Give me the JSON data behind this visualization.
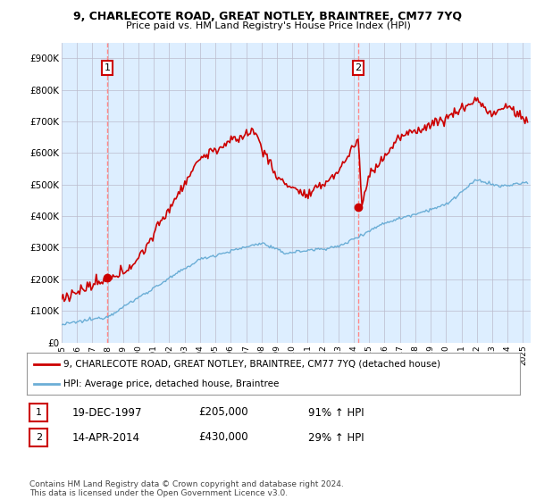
{
  "title1": "9, CHARLECOTE ROAD, GREAT NOTLEY, BRAINTREE, CM77 7YQ",
  "title2": "Price paid vs. HM Land Registry's House Price Index (HPI)",
  "ylabel_ticks": [
    "£0",
    "£100K",
    "£200K",
    "£300K",
    "£400K",
    "£500K",
    "£600K",
    "£700K",
    "£800K",
    "£900K"
  ],
  "ylim": [
    0,
    950000
  ],
  "xlim_start": 1995.0,
  "xlim_end": 2025.5,
  "sale1_x": 1997.97,
  "sale1_y": 205000,
  "sale1_label": "1",
  "sale2_x": 2014.28,
  "sale2_y": 430000,
  "sale2_label": "2",
  "legend_line1": "9, CHARLECOTE ROAD, GREAT NOTLEY, BRAINTREE, CM77 7YQ (detached house)",
  "legend_line2": "HPI: Average price, detached house, Braintree",
  "table_row1": [
    "1",
    "19-DEC-1997",
    "£205,000",
    "91% ↑ HPI"
  ],
  "table_row2": [
    "2",
    "14-APR-2014",
    "£430,000",
    "29% ↑ HPI"
  ],
  "footer": "Contains HM Land Registry data © Crown copyright and database right 2024.\nThis data is licensed under the Open Government Licence v3.0.",
  "hpi_color": "#6baed6",
  "price_color": "#cc0000",
  "vline_color": "#ff8888",
  "chart_bg": "#ddeeff",
  "background_color": "#ffffff",
  "grid_color": "#bbbbcc"
}
